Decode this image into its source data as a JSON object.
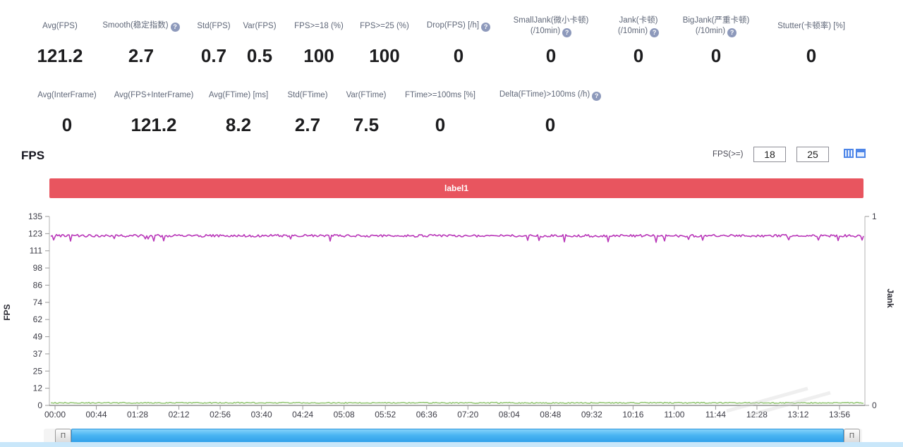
{
  "stats_row1": {
    "items": [
      {
        "label": "Avg(FPS)",
        "value": "121.2"
      },
      {
        "label": "Smooth(稳定指数)",
        "value": "2.7"
      },
      {
        "label": "Std(FPS)",
        "value": "0.7"
      },
      {
        "label": "Var(FPS)",
        "value": "0.5"
      },
      {
        "label": "FPS>=18 (%)",
        "value": "100"
      },
      {
        "label": "FPS>=25 (%)",
        "value": "100"
      },
      {
        "label": "Drop(FPS) [/h]",
        "value": "0"
      },
      {
        "label": "SmallJank(微小卡顿)",
        "label2": "(/10min)",
        "value": "0"
      },
      {
        "label": "Jank(卡顿)",
        "label2": "(/10min)",
        "value": "0"
      },
      {
        "label": "BigJank(严重卡顿)",
        "label2": "(/10min)",
        "value": "0"
      },
      {
        "label": "Stutter(卡顿率) [%]",
        "value": "0"
      }
    ]
  },
  "stats_row2": {
    "items": [
      {
        "label": "Avg(InterFrame)",
        "value": "0"
      },
      {
        "label": "Avg(FPS+InterFrame)",
        "value": "121.2"
      },
      {
        "label": "Avg(FTime) [ms]",
        "value": "8.2"
      },
      {
        "label": "Std(FTime)",
        "value": "2.7"
      },
      {
        "label": "Var(FTime)",
        "value": "7.5"
      },
      {
        "label": "FTime>=100ms [%]",
        "value": "0"
      },
      {
        "label": "Delta(FTime)>100ms (/h)",
        "value": "0"
      }
    ]
  },
  "help_icon_glyph": "?",
  "fps_section": {
    "title": "FPS",
    "threshold_label": "FPS(>=)",
    "threshold_low": "18",
    "threshold_high": "25"
  },
  "legend": {
    "series1_label": "label1",
    "banner_color": "#e8555f"
  },
  "scrollbar": {
    "handle_glyph": "Π",
    "bar_color": "#46aaee"
  },
  "chart_data": {
    "type": "line",
    "title": "FPS over time",
    "grid": false,
    "legend_position": "top-banner",
    "x_axis": {
      "tick_labels": [
        "00:00",
        "00:44",
        "01:28",
        "02:12",
        "02:56",
        "03:40",
        "04:24",
        "05:08",
        "05:52",
        "06:36",
        "07:20",
        "08:04",
        "08:48",
        "09:32",
        "10:16",
        "11:00",
        "11:44",
        "12:28",
        "13:12",
        "13:56"
      ]
    },
    "y_axis_left": {
      "label": "FPS",
      "ticks": [
        "135",
        "123",
        "111",
        "98",
        "86",
        "74",
        "62",
        "49",
        "37",
        "25",
        "12",
        "0"
      ],
      "range": [
        0,
        135
      ]
    },
    "y_axis_right": {
      "label": "Jank",
      "ticks": [
        "1",
        "0"
      ],
      "range": [
        0,
        1
      ]
    },
    "series": [
      {
        "name": "label1 (FPS)",
        "color": "#b937b9",
        "shape": "flat-noisy",
        "baseline": 121.2,
        "noise": 1.8,
        "occasional_dip_to": 117
      },
      {
        "name": "near-zero line",
        "color": "#96c878",
        "shape": "flat-noisy",
        "baseline": 1.8,
        "noise": 0.8
      }
    ]
  }
}
